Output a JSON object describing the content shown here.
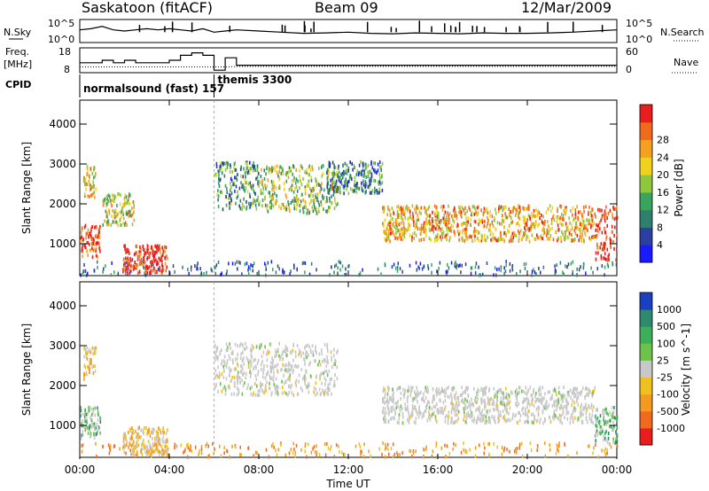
{
  "header": {
    "station": "Saskatoon (fitACF)",
    "beam": "Beam 09",
    "date": "12/Mar/2009"
  },
  "strip_labels": {
    "nsky": "N.Sky",
    "nsearch": "N.Search",
    "freq_line1": "Freq.",
    "freq_line2": "[MHz]",
    "nave": "Nave",
    "cpid": "CPID",
    "nsky_top": "10^5",
    "nsky_bottom": "10^0",
    "nsearch_top": "10^5",
    "nsearch_bottom": "10^0",
    "freq_top": "18",
    "freq_bottom": "8",
    "nave_top": "60",
    "nave_bottom": "0"
  },
  "cpid_programs": [
    {
      "label": "normalsound (fast) 157",
      "start_hour": 0.0,
      "end_hour": 6.0
    },
    {
      "label": "themis 3300",
      "start_hour": 6.0,
      "end_hour": 24.0
    }
  ],
  "chart_data": [
    {
      "type": "heatmap",
      "quantity": "Power",
      "ylabel": "Slant Range [km]",
      "xlabel": "",
      "xlim": [
        0,
        24
      ],
      "ylim": [
        200,
        4600
      ],
      "y_ticks": [
        "1000",
        "2000",
        "3000",
        "4000"
      ],
      "colorbar": {
        "label": "Power [dB]",
        "ticks": [
          "4",
          "8",
          "12",
          "16",
          "20",
          "24",
          "28"
        ],
        "colors": [
          "#1a1aff",
          "#2c3fa0",
          "#2f7f6e",
          "#3aa35e",
          "#8fc63c",
          "#f0d21e",
          "#f5a020",
          "#f06a1e",
          "#e81e1e"
        ]
      },
      "echo_regions": [
        {
          "start_hour": 0.0,
          "end_hour": 0.9,
          "range_min": 700,
          "range_max": 1500,
          "level": 0.9
        },
        {
          "start_hour": 0.15,
          "end_hour": 0.7,
          "range_min": 2200,
          "range_max": 3000,
          "level": 0.65
        },
        {
          "start_hour": 1.0,
          "end_hour": 2.4,
          "range_min": 1500,
          "range_max": 2300,
          "level": 0.55
        },
        {
          "start_hour": 1.9,
          "end_hour": 3.9,
          "range_min": 300,
          "range_max": 1000,
          "level": 0.97
        },
        {
          "start_hour": 6.0,
          "end_hour": 8.0,
          "range_min": 1900,
          "range_max": 3100,
          "level": 0.35
        },
        {
          "start_hour": 8.0,
          "end_hour": 11.5,
          "range_min": 1800,
          "range_max": 3000,
          "level": 0.5
        },
        {
          "start_hour": 11.0,
          "end_hour": 13.5,
          "range_min": 2300,
          "range_max": 3100,
          "level": 0.3
        },
        {
          "start_hour": 13.5,
          "end_hour": 23.0,
          "range_min": 1100,
          "range_max": 2000,
          "level": 0.7
        },
        {
          "start_hour": 23.0,
          "end_hour": 24.0,
          "range_min": 600,
          "range_max": 2000,
          "level": 0.95
        }
      ]
    },
    {
      "type": "heatmap",
      "quantity": "Velocity",
      "ylabel": "Slant Range [km]",
      "xlabel": "Time UT",
      "xlim": [
        0,
        24
      ],
      "ylim": [
        200,
        4600
      ],
      "x_ticks": [
        "00:00",
        "04:00",
        "08:00",
        "12:00",
        "16:00",
        "20:00",
        "00:00"
      ],
      "y_ticks": [
        "1000",
        "2000",
        "3000",
        "4000"
      ],
      "colorbar": {
        "label": "Velocity [m s^-1]",
        "ticks": [
          "1000",
          "500",
          "100",
          "25",
          "-25",
          "-100",
          "-500",
          "-1000"
        ],
        "colors": [
          "#1a3fbf",
          "#2e8a6e",
          "#3fae5a",
          "#6cc24a",
          "#c8c8c8",
          "#f0c020",
          "#f59a20",
          "#f06a1e",
          "#e81e1e"
        ]
      },
      "echo_regions": [
        {
          "start_hour": 0.0,
          "end_hour": 0.9,
          "range_min": 700,
          "range_max": 1500,
          "level": "positive"
        },
        {
          "start_hour": 0.15,
          "end_hour": 0.7,
          "range_min": 2200,
          "range_max": 3000,
          "level": "negative"
        },
        {
          "start_hour": 1.9,
          "end_hour": 3.9,
          "range_min": 300,
          "range_max": 1000,
          "level": "negative"
        },
        {
          "start_hour": 6.0,
          "end_hour": 11.5,
          "range_min": 1800,
          "range_max": 3100,
          "level": "near-zero"
        },
        {
          "start_hour": 13.5,
          "end_hour": 23.0,
          "range_min": 1100,
          "range_max": 2000,
          "level": "near-zero"
        },
        {
          "start_hour": 23.0,
          "end_hour": 24.0,
          "range_min": 600,
          "range_max": 1500,
          "level": "positive"
        }
      ]
    }
  ],
  "time_series": {
    "hours": [
      0,
      0.5,
      1,
      1.5,
      2,
      2.5,
      3,
      3.5,
      4,
      4.5,
      5,
      5.5,
      6,
      6.5,
      7,
      8,
      9,
      10,
      11,
      12,
      13,
      14,
      15,
      16,
      17,
      18,
      19,
      20,
      21,
      22,
      23,
      24
    ],
    "nsky": [
      0.55,
      0.6,
      0.7,
      0.55,
      0.5,
      0.55,
      0.6,
      0.55,
      0.6,
      0.55,
      0.5,
      0.6,
      0.45,
      0.5,
      0.55,
      0.5,
      0.45,
      0.4,
      0.42,
      0.45,
      0.4,
      0.38,
      0.42,
      0.4,
      0.38,
      0.42,
      0.4,
      0.4,
      0.42,
      0.45,
      0.5,
      0.55
    ],
    "freq_mhz": [
      12,
      12,
      13,
      12,
      13,
      12,
      12,
      12,
      13,
      15,
      16,
      15,
      9,
      14,
      11,
      11,
      11,
      11,
      11,
      11,
      11,
      11,
      11,
      11,
      11,
      11,
      11,
      11,
      11,
      11,
      11,
      11
    ],
    "nave": [
      14,
      14,
      14,
      14,
      14,
      14,
      14,
      14,
      14,
      14,
      14,
      14,
      14,
      14,
      15,
      15,
      15,
      15,
      15,
      15,
      15,
      15,
      15,
      15,
      15,
      15,
      15,
      15,
      15,
      15,
      15,
      15
    ]
  }
}
